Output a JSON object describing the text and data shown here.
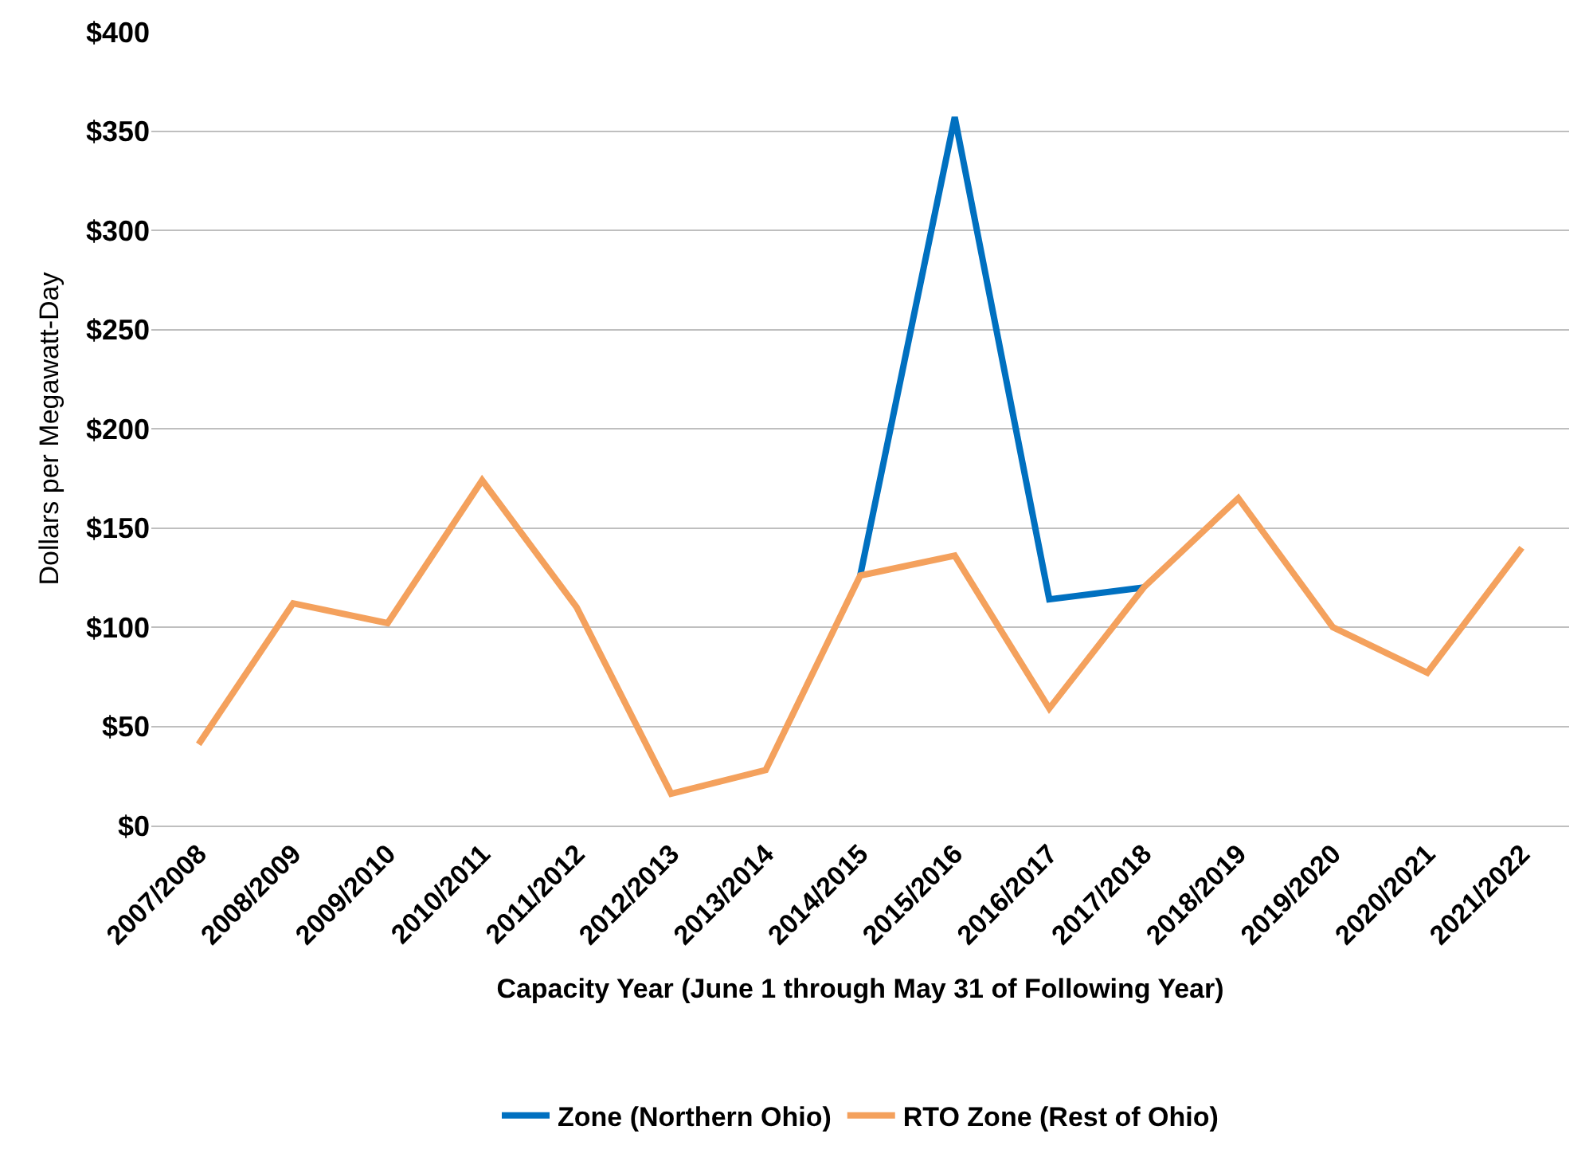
{
  "chart_data": {
    "type": "line",
    "categories": [
      "2007/2008",
      "2008/2009",
      "2009/2010",
      "2010/2011",
      "2011/2012",
      "2012/2013",
      "2013/2014",
      "2014/2015",
      "2015/2016",
      "2016/2017",
      "2017/2018",
      "2018/2019",
      "2019/2020",
      "2020/2021",
      "2021/2022"
    ],
    "series": [
      {
        "name": "Zone (Northern Ohio)",
        "color": "#0070c0",
        "values": [
          null,
          null,
          null,
          null,
          null,
          null,
          null,
          126,
          357,
          114,
          120,
          null,
          null,
          null,
          null
        ]
      },
      {
        "name": "RTO Zone (Rest of Ohio)",
        "color": "#f4a15d",
        "values": [
          41,
          112,
          102,
          174,
          110,
          16,
          28,
          126,
          136,
          59,
          120,
          165,
          100,
          77,
          140
        ]
      }
    ],
    "xlabel": "Capacity Year (June 1 through May 31 of Following Year)",
    "ylabel": "Dollars per Megawatt-Day",
    "ylim": [
      0,
      400
    ],
    "yticks": [
      {
        "value": 0,
        "label": "$0"
      },
      {
        "value": 50,
        "label": "$50"
      },
      {
        "value": 100,
        "label": "$100"
      },
      {
        "value": 150,
        "label": "$150"
      },
      {
        "value": 200,
        "label": "$200"
      },
      {
        "value": 250,
        "label": "$250"
      },
      {
        "value": 300,
        "label": "$300"
      },
      {
        "value": 350,
        "label": "$350"
      },
      {
        "value": 400,
        "label": "$400"
      }
    ],
    "grid": "y",
    "legend": "bottom",
    "marker": "none",
    "line_style": "solid"
  }
}
